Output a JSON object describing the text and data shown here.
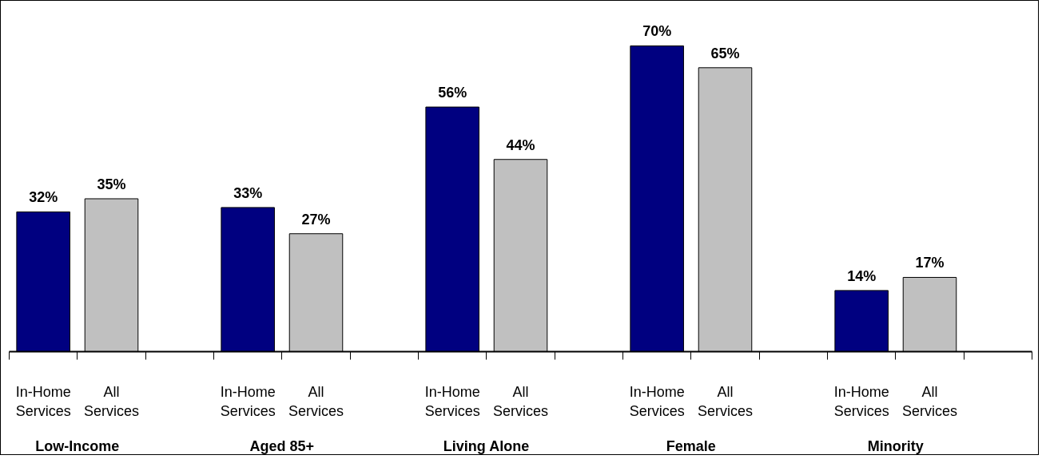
{
  "chart_data": {
    "type": "bar",
    "categories": [
      "Low-Income",
      "Aged 85+",
      "Living Alone",
      "Female",
      "Minority"
    ],
    "series": [
      {
        "name": "In-Home Services",
        "color": "#000080",
        "values": [
          32,
          33,
          56,
          70,
          14
        ],
        "value_labels": [
          "32%",
          "33%",
          "56%",
          "70%",
          "14%"
        ]
      },
      {
        "name": "All Services",
        "color": "#c0c0c0",
        "values": [
          35,
          27,
          44,
          65,
          17
        ],
        "value_labels": [
          "35%",
          "27%",
          "44%",
          "65%",
          "17%"
        ]
      }
    ],
    "grid": false
  }
}
